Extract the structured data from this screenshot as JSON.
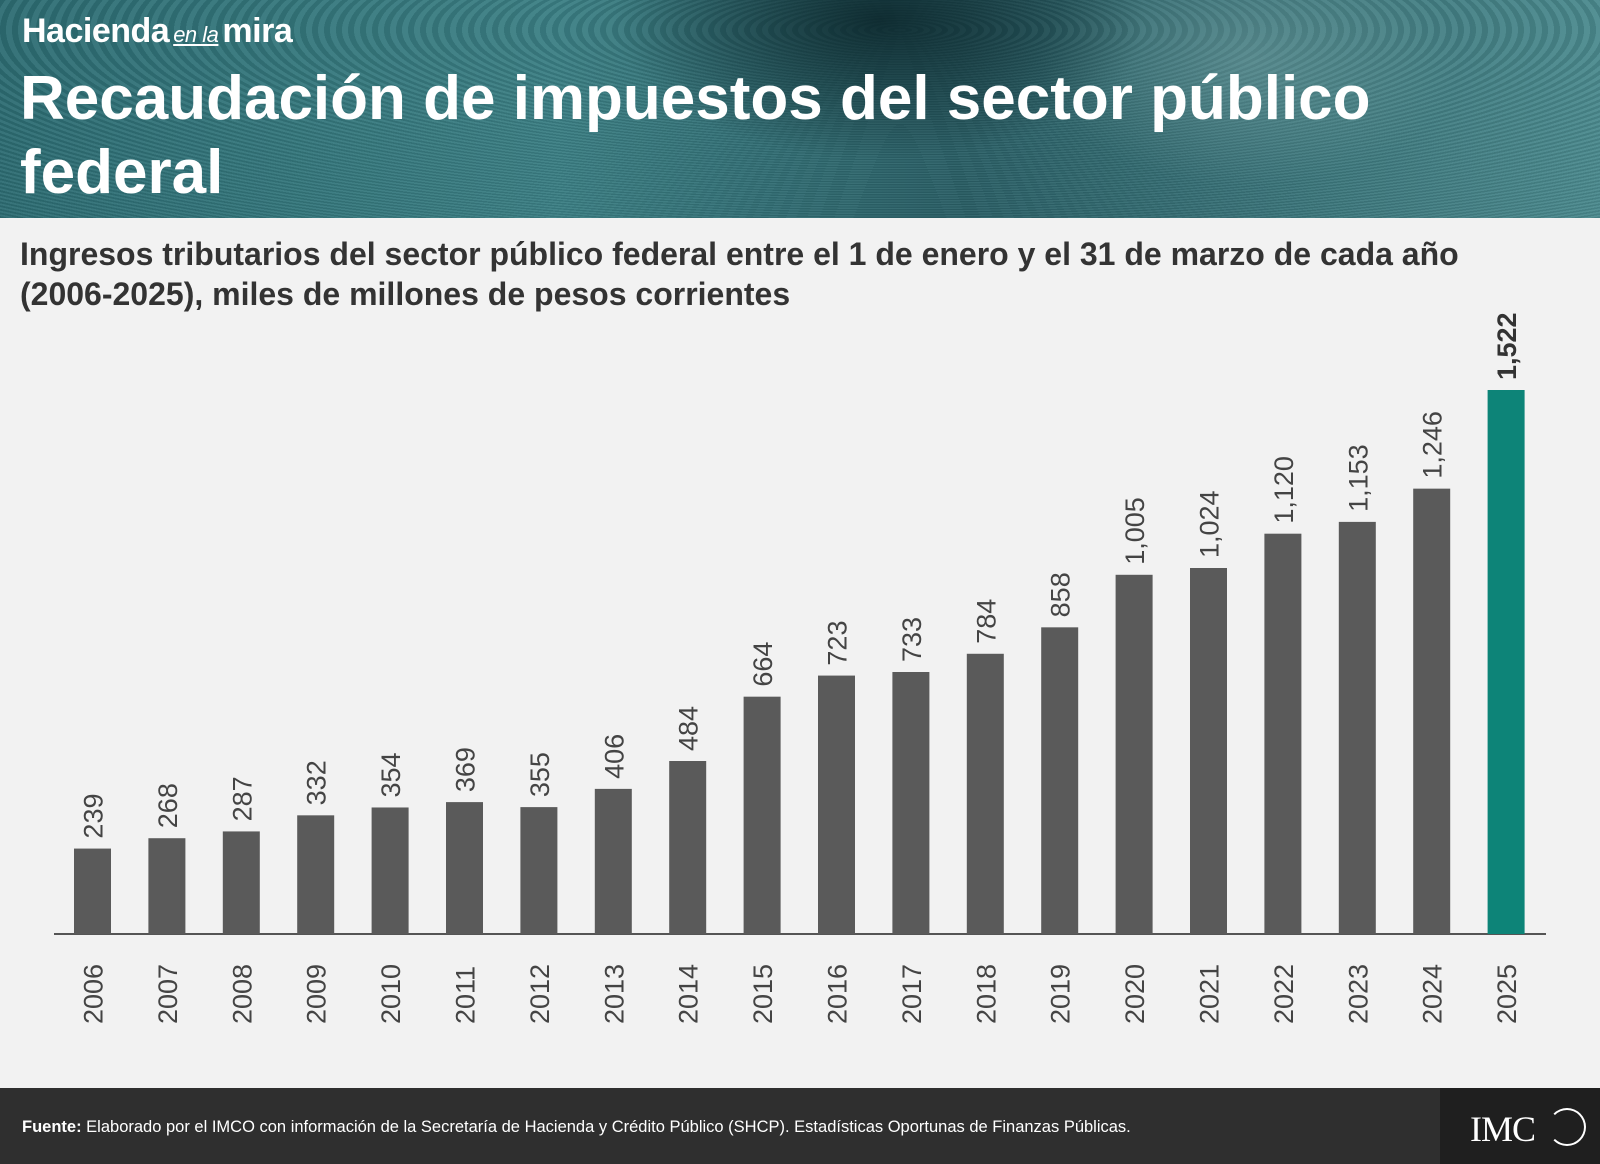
{
  "header": {
    "brand_main": "Hacienda",
    "brand_small": "en la",
    "brand_end": "mira",
    "title": "Recaudación de impuestos del sector público federal"
  },
  "subtitle": "Ingresos tributarios del sector público federal entre el 1 de enero y el 31 de marzo de cada año (2006-2025), miles de millones de pesos corrientes",
  "colors": {
    "bar": "#5a5a5a",
    "highlight": "#0d8478",
    "axis": "#555555",
    "label": "#444444"
  },
  "chart_data": {
    "type": "bar",
    "title": "",
    "xlabel": "",
    "ylabel": "",
    "categories": [
      "2006",
      "2007",
      "2008",
      "2009",
      "2010",
      "2011",
      "2012",
      "2013",
      "2014",
      "2015",
      "2016",
      "2017",
      "2018",
      "2019",
      "2020",
      "2021",
      "2022",
      "2023",
      "2024",
      "2025"
    ],
    "values": [
      239,
      268,
      287,
      332,
      354,
      369,
      355,
      406,
      484,
      664,
      723,
      733,
      784,
      858,
      1005,
      1024,
      1120,
      1153,
      1246,
      1522
    ],
    "value_labels": [
      "239",
      "268",
      "287",
      "332",
      "354",
      "369",
      "355",
      "406",
      "484",
      "664",
      "723",
      "733",
      "784",
      "858",
      "1,005",
      "1,024",
      "1,120",
      "1,153",
      "1,246",
      "1,522"
    ],
    "highlight_category": "2025",
    "ylim": [
      0,
      1522
    ],
    "grid": false
  },
  "footer": {
    "source_label": "Fuente:",
    "source_text": " Elaborado por el IMCO con información de la Secretaría de Hacienda y Crédito Público (SHCP). Estadísticas Oportunas de Finanzas Públicas.",
    "logo_text": "IMC"
  }
}
